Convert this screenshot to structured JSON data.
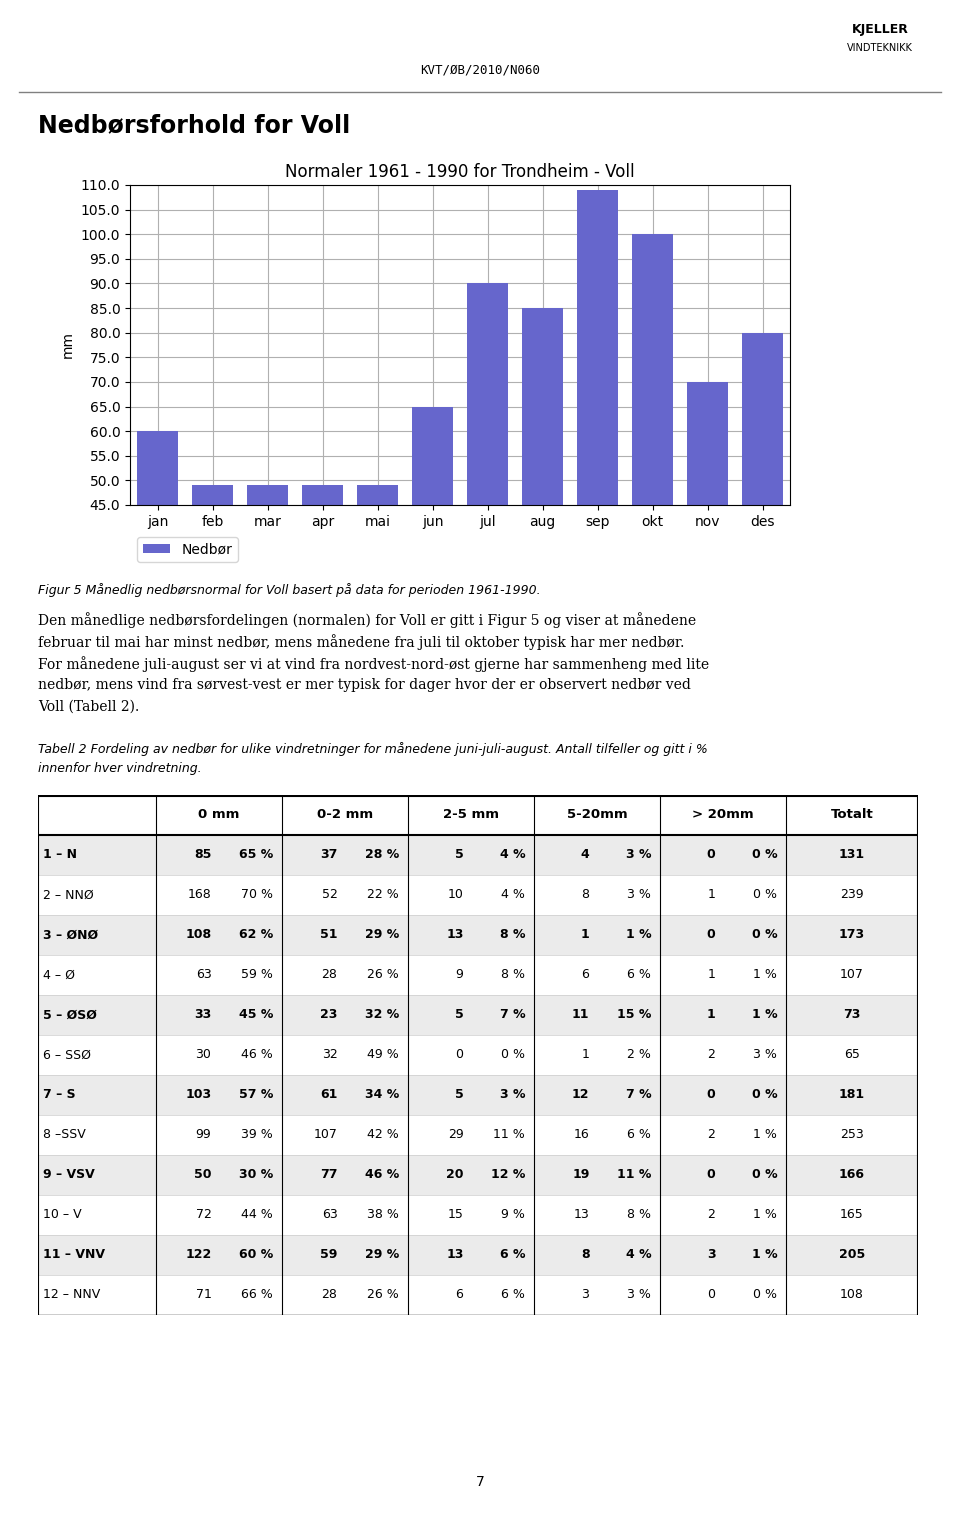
{
  "chart_data": {
    "type": "bar",
    "title": "Normaler 1961 - 1990 for Trondheim - Voll",
    "y_label": "mm",
    "categories": [
      "jan",
      "feb",
      "mar",
      "apr",
      "mai",
      "jun",
      "jul",
      "aug",
      "sep",
      "okt",
      "nov",
      "des"
    ],
    "series": [
      {
        "name": "Nedbør",
        "color": "#6666cc",
        "values": [
          60.0,
          49.0,
          49.0,
          49.0,
          49.0,
          65.0,
          90.0,
          85.0,
          109.0,
          100.0,
          70.0,
          80.0
        ]
      }
    ],
    "ylim": [
      45,
      110
    ],
    "yticks": [
      {
        "value": 45,
        "label": "45.0"
      },
      {
        "value": 50,
        "label": "50.0"
      },
      {
        "value": 55,
        "label": "55.0"
      },
      {
        "value": 60,
        "label": "60.0"
      },
      {
        "value": 65,
        "label": "65.0"
      },
      {
        "value": 70,
        "label": "70.0"
      },
      {
        "value": 75,
        "label": "75.0"
      },
      {
        "value": 80,
        "label": "80.0"
      },
      {
        "value": 85,
        "label": "85.0"
      },
      {
        "value": 90,
        "label": "90.0"
      },
      {
        "value": 95,
        "label": "95.0"
      },
      {
        "value": 100,
        "label": "100.0"
      },
      {
        "value": 105,
        "label": "105.0"
      },
      {
        "value": 110,
        "label": "110.0"
      }
    ],
    "grid": true,
    "legend": "lower left"
  },
  "page_title": "KVT/ØB/2010/N060",
  "logo_text": [
    "KJELLER",
    "VINDTEKNIKK"
  ],
  "section_title": "Nedbørsforhold for Voll",
  "figure_caption": "Figur 5 Månedlig nedbørsnormal for Voll basert på data for perioden 1961-1990.",
  "paragraph": [
    "Den månedlige nedbørsfordelingen (normalen) for Voll er gitt i Figur 5 og viser at månedene",
    "februar til mai har minst nedbør, mens månedene fra juli til oktober typisk har mer nedbør.",
    "For månedene juli-august ser vi at vind fra nordvest-nord-øst gjerne har sammenheng med lite",
    "nedbør, mens vind fra sørvest-vest er mer typisk for dager hvor der er observert nedbør ved",
    "Voll (Tabell 2)."
  ],
  "table_caption": [
    "Tabell 2 Fordeling av nedbør for ulike vindretninger for månedene juni-juli-august. Antall tilfeller og gitt i %",
    "innenfor hver vindretning."
  ],
  "table": {
    "headers": [
      "0 mm",
      "0-2 mm",
      "2-5 mm",
      "5-20mm",
      "> 20mm",
      "Totalt"
    ],
    "rows": [
      [
        "1 – N",
        "85",
        "65 %",
        "37",
        "28 %",
        "5",
        "4 %",
        "4",
        "3 %",
        "0",
        "0 %",
        "131"
      ],
      [
        "2 – NNØ",
        "168",
        "70 %",
        "52",
        "22 %",
        "10",
        "4 %",
        "8",
        "3 %",
        "1",
        "0 %",
        "239"
      ],
      [
        "3 – ØNØ",
        "108",
        "62 %",
        "51",
        "29 %",
        "13",
        "8 %",
        "1",
        "1 %",
        "0",
        "0 %",
        "173"
      ],
      [
        "4 – Ø",
        "63",
        "59 %",
        "28",
        "26 %",
        "9",
        "8 %",
        "6",
        "6 %",
        "1",
        "1 %",
        "107"
      ],
      [
        "5 – ØSØ",
        "33",
        "45 %",
        "23",
        "32 %",
        "5",
        "7 %",
        "11",
        "15 %",
        "1",
        "1 %",
        "73"
      ],
      [
        "6 – SSØ",
        "30",
        "46 %",
        "32",
        "49 %",
        "0",
        "0 %",
        "1",
        "2 %",
        "2",
        "3 %",
        "65"
      ],
      [
        "7 – S",
        "103",
        "57 %",
        "61",
        "34 %",
        "5",
        "3 %",
        "12",
        "7 %",
        "0",
        "0 %",
        "181"
      ],
      [
        "8 –SSV",
        "99",
        "39 %",
        "107",
        "42 %",
        "29",
        "11 %",
        "16",
        "6 %",
        "2",
        "1 %",
        "253"
      ],
      [
        "9 – VSV",
        "50",
        "30 %",
        "77",
        "46 %",
        "20",
        "12 %",
        "19",
        "11 %",
        "0",
        "0 %",
        "166"
      ],
      [
        "10 – V",
        "72",
        "44 %",
        "63",
        "38 %",
        "15",
        "9 %",
        "13",
        "8 %",
        "2",
        "1 %",
        "165"
      ],
      [
        "11 – VNV",
        "122",
        "60 %",
        "59",
        "29 %",
        "13",
        "6 %",
        "8",
        "4 %",
        "3",
        "1 %",
        "205"
      ],
      [
        "12 – NNV",
        "71",
        "66 %",
        "28",
        "26 %",
        "6",
        "6 %",
        "3",
        "3 %",
        "0",
        "0 %",
        "108"
      ]
    ],
    "bold_rows": [
      0,
      2,
      4,
      6,
      8,
      10
    ]
  },
  "page_number": "7"
}
